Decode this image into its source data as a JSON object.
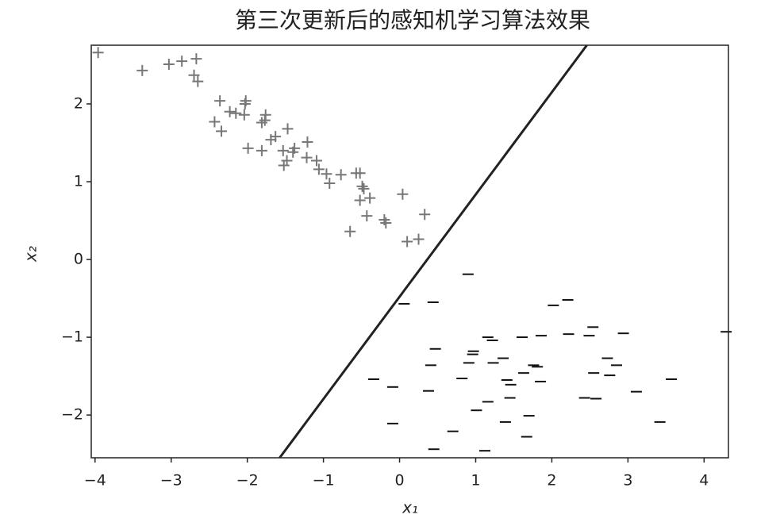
{
  "chart_data": {
    "type": "scatter",
    "title": "第三次更新后的感知机学习算法效果",
    "xlabel": "x₁",
    "ylabel": "x₂",
    "xlim": [
      -4.05,
      4.32
    ],
    "ylim": [
      -2.55,
      2.755
    ],
    "xticks": [
      {
        "value": -4,
        "label": "−4"
      },
      {
        "value": -3,
        "label": "−3"
      },
      {
        "value": -2,
        "label": "−2"
      },
      {
        "value": -1,
        "label": "−1"
      },
      0,
      1,
      2,
      3,
      4
    ],
    "yticks": [
      {
        "value": -2,
        "label": "−2"
      },
      {
        "value": -1,
        "label": "−1"
      },
      0,
      1,
      2
    ],
    "grid": false,
    "series": [
      {
        "marker": "+",
        "color": "#777777",
        "x": [
          -3.96,
          -3.38,
          -3.03,
          -2.86,
          -2.67,
          -2.7,
          -2.65,
          -2.36,
          -2.23,
          -2.15,
          -2.03,
          -2.02,
          -2.04,
          -1.76,
          -1.77,
          -1.81,
          -2.43,
          -2.34,
          -1.99,
          -1.81,
          -1.69,
          -1.63,
          -1.47,
          -1.21,
          -1.53,
          -1.48,
          -1.52,
          -1.4,
          -1.38,
          -1.22,
          -1.09,
          -1.06,
          -0.96,
          -0.92,
          -0.77,
          -0.57,
          -0.52,
          -0.52,
          -0.49,
          -0.47,
          -0.39,
          -0.43,
          -0.2,
          -0.18,
          0.04,
          0.1,
          0.25,
          0.33,
          -0.65
        ],
        "values": [
          2.66,
          2.43,
          2.51,
          2.55,
          2.58,
          2.37,
          2.29,
          2.04,
          1.9,
          1.88,
          2.0,
          2.04,
          1.86,
          1.86,
          1.79,
          1.76,
          1.77,
          1.65,
          1.43,
          1.4,
          1.54,
          1.58,
          1.68,
          1.51,
          1.4,
          1.27,
          1.21,
          1.38,
          1.43,
          1.31,
          1.27,
          1.16,
          1.1,
          0.98,
          1.09,
          1.11,
          1.11,
          0.76,
          0.94,
          0.91,
          0.79,
          0.56,
          0.51,
          0.47,
          0.84,
          0.23,
          0.26,
          0.58,
          0.36
        ]
      },
      {
        "marker": "_",
        "color": "#111111",
        "x": [
          0.9,
          0.06,
          0.44,
          2.02,
          2.21,
          4.29,
          2.54,
          2.49,
          2.22,
          2.94,
          1.16,
          1.22,
          0.47,
          0.97,
          0.96,
          1.61,
          1.86,
          1.36,
          0.91,
          1.23,
          0.41,
          1.76,
          1.81,
          1.63,
          2.73,
          2.55,
          2.85,
          2.76,
          -0.34,
          -0.09,
          0.38,
          0.82,
          1.41,
          1.46,
          1.85,
          3.11,
          3.57,
          1.16,
          1.45,
          1.01,
          1.7,
          2.43,
          2.58,
          -0.09,
          1.39,
          0.7,
          1.67,
          3.42,
          0.45,
          1.12
        ],
        "values": [
          -0.19,
          -0.57,
          -0.55,
          -0.59,
          -0.52,
          -0.93,
          -0.87,
          -0.98,
          -0.96,
          -0.95,
          -1.0,
          -1.04,
          -1.15,
          -1.18,
          -1.22,
          -1.0,
          -0.98,
          -1.27,
          -1.33,
          -1.33,
          -1.36,
          -1.36,
          -1.38,
          -1.46,
          -1.27,
          -1.46,
          -1.36,
          -1.49,
          -1.54,
          -1.64,
          -1.69,
          -1.53,
          -1.55,
          -1.61,
          -1.57,
          -1.7,
          -1.54,
          -1.83,
          -1.78,
          -1.94,
          -2.01,
          -1.78,
          -1.79,
          -2.11,
          -2.09,
          -2.21,
          -2.28,
          -2.09,
          -2.44,
          -2.46
        ]
      },
      {
        "style": "line",
        "color": "#222222",
        "x": [
          -1.575,
          2.46
        ],
        "values": [
          -2.55,
          2.755
        ]
      }
    ]
  }
}
